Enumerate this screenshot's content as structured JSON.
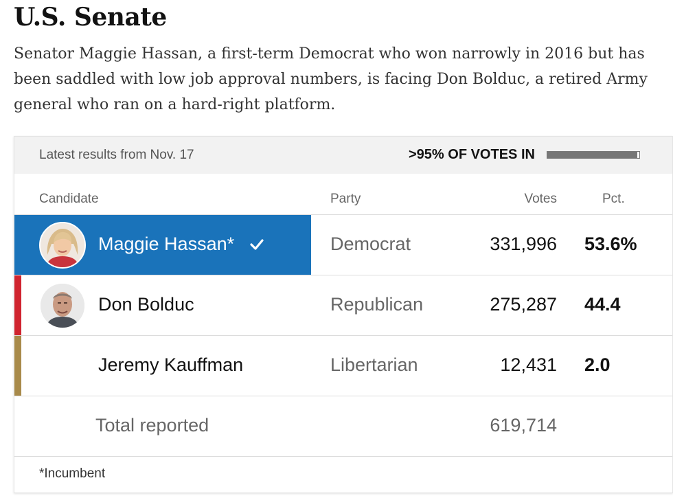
{
  "header": {
    "title": "U.S. Senate",
    "description": "Senator Maggie Hassan, a first-term Democrat who won narrowly in 2016 but has been saddled with low job approval numbers, is facing Don Bolduc, a retired Army general who ran on a hard-right platform."
  },
  "results": {
    "latest_label": "Latest results from Nov. 17",
    "reporting_label": ">95% OF VOTES IN",
    "reporting_fraction": 0.98,
    "columns": {
      "candidate": "Candidate",
      "party": "Party",
      "votes": "Votes",
      "pct": "Pct."
    },
    "candidates": [
      {
        "name": "Maggie Hassan*",
        "party": "Democrat",
        "votes": "331,996",
        "pct": "53.6%",
        "winner": true,
        "color": "#1a73ba",
        "avatar": "person-photo-icon"
      },
      {
        "name": "Don Bolduc",
        "party": "Republican",
        "votes": "275,287",
        "pct": "44.4",
        "winner": false,
        "color": "#d0242f",
        "avatar": "person-photo-icon"
      },
      {
        "name": "Jeremy Kauffman",
        "party": "Libertarian",
        "votes": "12,431",
        "pct": "2.0",
        "winner": false,
        "color": "#a88a4a",
        "avatar": ""
      }
    ],
    "total": {
      "label": "Total reported",
      "votes": "619,714"
    },
    "footnote": "*Incumbent"
  }
}
